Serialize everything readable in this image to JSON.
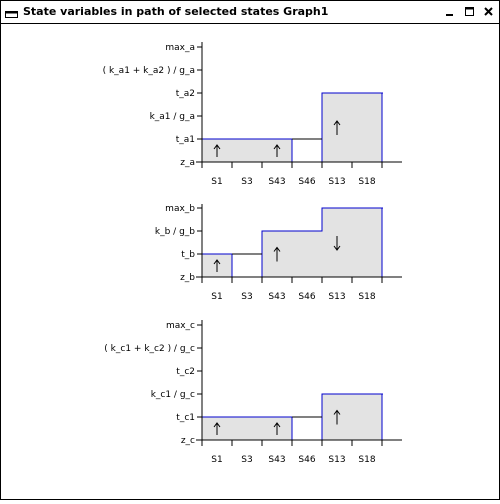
{
  "window": {
    "title": "State variables in path of selected states Graph1",
    "controls": {
      "minimize_icon": "minimize-icon",
      "maximize_icon": "maximize-icon",
      "close_icon": "close-icon"
    }
  },
  "colors": {
    "bar_fill": "#e3e3e3",
    "bar_stroke": "#0000cc",
    "axis": "#000000"
  },
  "graphs": [
    {
      "id": "a",
      "y_levels": [
        "z_a",
        "t_a1",
        "k_a1 / g_a",
        "t_a2",
        "( k_a1 + k_a2 ) / g_a",
        "max_a"
      ],
      "x_labels": [
        "S1",
        "S3",
        "S43",
        "S46",
        "S13",
        "S18"
      ],
      "steps": [
        1,
        1,
        1,
        null,
        3,
        3
      ],
      "arrows": [
        "up",
        null,
        "up",
        null,
        "up",
        null
      ]
    },
    {
      "id": "b",
      "y_levels": [
        "z_b",
        "t_b",
        "k_b / g_b",
        "max_b"
      ],
      "x_labels": [
        "S1",
        "S3",
        "S43",
        "S46",
        "S13",
        "S18"
      ],
      "steps": [
        1,
        null,
        2,
        2,
        3,
        3
      ],
      "arrows": [
        "up",
        null,
        "up",
        null,
        "down",
        null
      ]
    },
    {
      "id": "c",
      "y_levels": [
        "z_c",
        "t_c1",
        "k_c1 / g_c",
        "t_c2",
        "( k_c1 + k_c2 ) / g_c",
        "max_c"
      ],
      "x_labels": [
        "S1",
        "S3",
        "S43",
        "S46",
        "S13",
        "S18"
      ],
      "steps": [
        1,
        1,
        1,
        null,
        2,
        2
      ],
      "arrows": [
        "up",
        null,
        "up",
        null,
        "up",
        null
      ]
    }
  ]
}
